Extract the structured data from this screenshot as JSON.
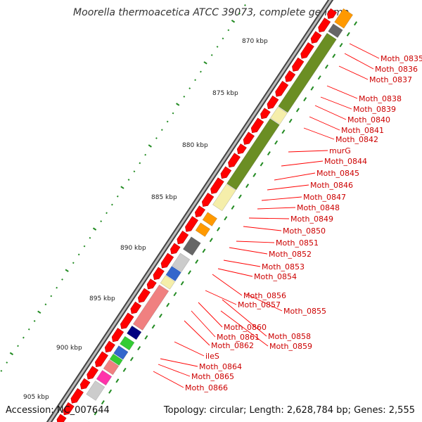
{
  "title": "Moorella thermoacetica ATCC 39073, complete genome",
  "accession": "Accession: NC_007644",
  "topology": "Topology: circular; Length: 2,628,784 bp; Genes: 2,555",
  "ruler": [
    "870 kbp",
    "875 kbp",
    "880 kbp",
    "885 kbp",
    "890 kbp",
    "895 kbp",
    "900 kbp",
    "905 kbp"
  ],
  "genes": [
    "Moth_0835",
    "Moth_0836",
    "Moth_0837",
    "Moth_0838",
    "Moth_0839",
    "Moth_0840",
    "Moth_0841",
    "Moth_0842",
    "murG",
    "Moth_0844",
    "Moth_0845",
    "Moth_0846",
    "Moth_0847",
    "Moth_0848",
    "Moth_0849",
    "Moth_0850",
    "Moth_0851",
    "Moth_0852",
    "Moth_0853",
    "Moth_0854",
    "Moth_0856",
    "Moth_0857",
    "Moth_0855",
    "Moth_0860",
    "Moth_0858",
    "Moth_0861",
    "Moth_0859",
    "Moth_0862",
    "ileS",
    "Moth_0864",
    "Moth_0865",
    "Moth_0866"
  ],
  "colors": {
    "gene_track": "#ff0000",
    "backbone": "#888888",
    "cog_green": "#6b8e23",
    "cog_yellow": "#f5eeaa",
    "cog_orange": "#ff9900",
    "cog_grey": "#666666",
    "cog_lightgrey": "#cccccc",
    "cog_blue": "#3366cc",
    "cog_navy": "#000080",
    "cog_pink": "#f08080",
    "cog_lime": "#33cc33",
    "cog_magenta": "#ff33aa",
    "label_line": "#ff0000",
    "tick": "#228b22"
  }
}
